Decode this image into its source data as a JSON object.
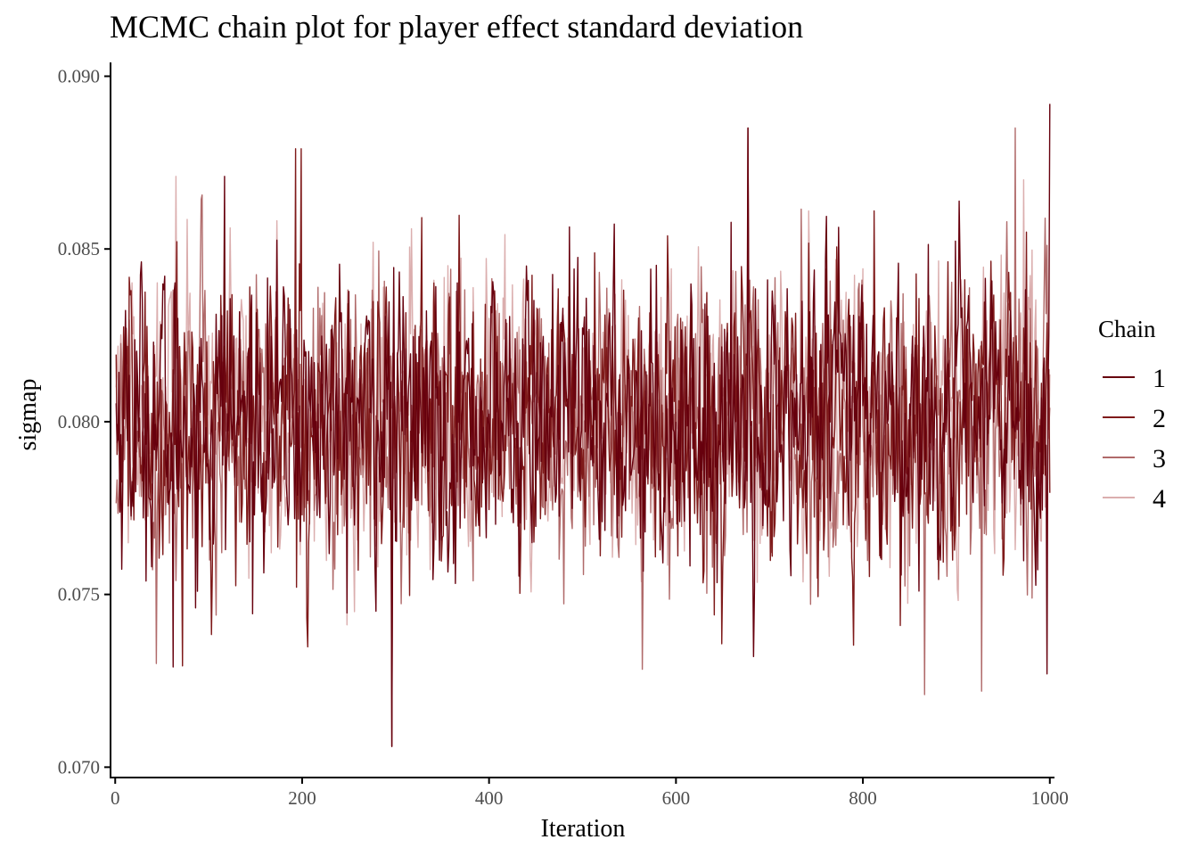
{
  "chart_data": {
    "type": "line",
    "title": "MCMC chain plot for player effect standard deviation",
    "xlabel": "Iteration",
    "ylabel": "sigmap",
    "xlim": [
      -5,
      1005
    ],
    "ylim": [
      0.0697,
      0.0904
    ],
    "x_ticks": [
      0,
      200,
      400,
      600,
      800,
      1000
    ],
    "x_tick_labels": [
      "0",
      "200",
      "400",
      "600",
      "800",
      "1000"
    ],
    "y_ticks": [
      0.07,
      0.075,
      0.08,
      0.085,
      0.09
    ],
    "y_tick_labels": [
      "0.070",
      "0.075",
      "0.080",
      "0.085",
      "0.090"
    ],
    "grid": false,
    "legend": {
      "title": "Chain",
      "position": "right"
    },
    "iterations": 1000,
    "series": [
      {
        "name": "1",
        "color": "#67000d",
        "mean": 0.0801,
        "sd": 0.0021,
        "features": [
          [
            62,
            0.0729
          ],
          [
            117,
            0.0871
          ],
          [
            296,
            0.0706
          ],
          [
            677,
            0.0885
          ],
          [
            997,
            0.0727
          ],
          [
            1000,
            0.0892
          ]
        ]
      },
      {
        "name": "2",
        "color": "#7f1a1a",
        "mean": 0.08,
        "sd": 0.0021,
        "features": [
          [
            193,
            0.0879
          ],
          [
            199,
            0.0879
          ],
          [
            296,
            0.0706
          ],
          [
            677,
            0.0885
          ]
        ]
      },
      {
        "name": "3",
        "color": "#b06a6a",
        "mean": 0.0799,
        "sd": 0.0021,
        "features": [
          [
            44,
            0.073
          ],
          [
            866,
            0.0721
          ],
          [
            927,
            0.0722
          ],
          [
            963,
            0.0885
          ]
        ]
      },
      {
        "name": "4",
        "color": "#dbaeae",
        "mean": 0.08,
        "sd": 0.002,
        "features": [
          [
            65,
            0.0871
          ],
          [
            742,
            0.0861
          ],
          [
            972,
            0.087
          ]
        ]
      }
    ]
  }
}
